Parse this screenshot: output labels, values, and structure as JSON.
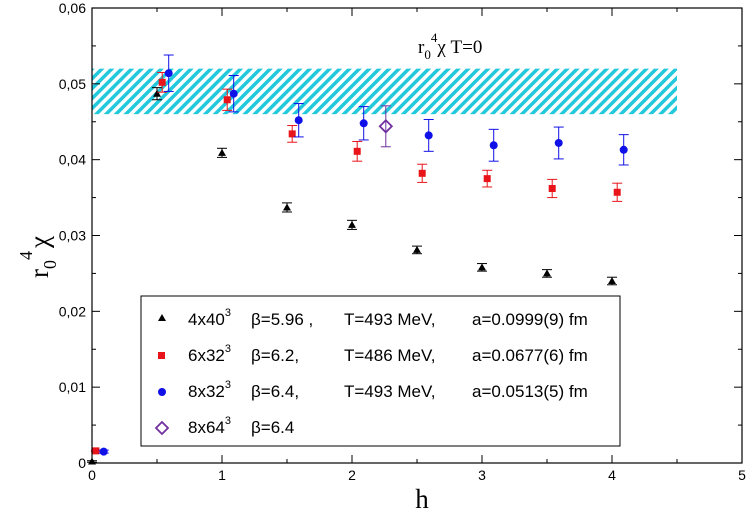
{
  "chart_data": {
    "type": "scatter",
    "title": {
      "prefix": "r",
      "sub": "0",
      "sup": "4",
      "rest": "χ T=0"
    },
    "xlabel": "h",
    "ylabel": {
      "prefix": "r",
      "sub": "0",
      "sup": "4",
      "rest": "χ"
    },
    "xlim": [
      0,
      5
    ],
    "ylim": [
      0,
      0.06
    ],
    "xticks": [
      0,
      1,
      2,
      3,
      4,
      5
    ],
    "xtick_labels": [
      "0",
      "1",
      "2",
      "3",
      "4",
      "5"
    ],
    "yticks": [
      0,
      0.01,
      0.02,
      0.03,
      0.04,
      0.05,
      0.06
    ],
    "ytick_labels": [
      "0",
      "0,01",
      "0,02",
      "0,03",
      "0,04",
      "0,05",
      "0,06"
    ],
    "band": {
      "x": [
        0,
        4.5
      ],
      "y": [
        0.046,
        0.052
      ],
      "color": "#22c8dc",
      "pattern": "diagonal-hatch"
    },
    "legend_position": "bottom-center",
    "series": [
      {
        "name": "4x40",
        "name_sup": "3",
        "beta": "β=5.96 ,",
        "temp": "T=493 MeV,",
        "spacing": "a=0.0999(9) fm",
        "marker": "triangle",
        "color": "#000000",
        "x": [
          0.0,
          0.5,
          1.0,
          1.5,
          2.0,
          2.5,
          3.0,
          3.5,
          4.0
        ],
        "y": [
          0.0002,
          0.0487,
          0.0409,
          0.0337,
          0.0314,
          0.0281,
          0.0258,
          0.025,
          0.024
        ],
        "err": [
          0.0001,
          0.0008,
          0.0006,
          0.0006,
          0.0006,
          0.0005,
          0.0005,
          0.0005,
          0.0005
        ]
      },
      {
        "name": "6x32",
        "name_sup": "3",
        "beta": "β=6.2,",
        "temp": "T=486 MeV,",
        "spacing": "a=0.0677(6) fm",
        "marker": "square",
        "color": "#e8141a",
        "x": [
          0.03,
          0.54,
          1.04,
          1.54,
          2.04,
          2.54,
          3.04,
          3.54,
          4.04
        ],
        "y": [
          0.0016,
          0.0502,
          0.0479,
          0.0434,
          0.0411,
          0.0382,
          0.0375,
          0.0362,
          0.0357
        ],
        "err": [
          0.0001,
          0.0013,
          0.0014,
          0.0011,
          0.0013,
          0.0012,
          0.0011,
          0.0012,
          0.0012
        ]
      },
      {
        "name": "8x32",
        "name_sup": "3",
        "beta": "β=6.4,",
        "temp": "T=493 MeV,",
        "spacing": "a=0.0513(5) fm",
        "marker": "circle",
        "color": "#1010e8",
        "x": [
          0.09,
          0.59,
          1.09,
          1.59,
          2.09,
          2.59,
          3.09,
          3.59,
          4.09
        ],
        "y": [
          0.0015,
          0.0514,
          0.0487,
          0.0452,
          0.0448,
          0.0432,
          0.0419,
          0.0422,
          0.0413
        ],
        "err": [
          0.0002,
          0.0024,
          0.0024,
          0.0022,
          0.0022,
          0.0021,
          0.0021,
          0.0021,
          0.002
        ]
      },
      {
        "name": "8x64",
        "name_sup": "3",
        "beta": "β=6.4",
        "temp": "",
        "spacing": "",
        "marker": "diamond-open",
        "color": "#7030a0",
        "x": [
          2.26
        ],
        "y": [
          0.0444
        ],
        "err": [
          0.0027
        ]
      }
    ]
  }
}
